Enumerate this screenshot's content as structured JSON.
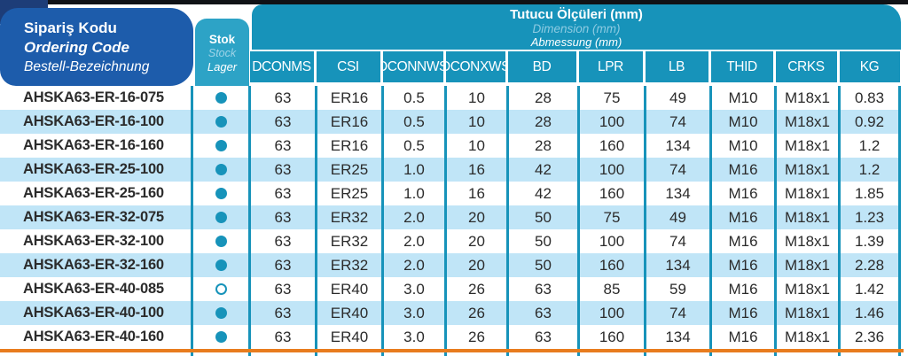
{
  "colors": {
    "teal": "#1793ba",
    "teal_panel": "#2da3c6",
    "royal_blue": "#1d5cab",
    "navy_tab": "#1d3d78",
    "top_strip": "#101216",
    "row_stripe": "#c0e5f7",
    "orange_rule": "#e87c1e",
    "text_dark": "#2b2b2b"
  },
  "ordering_code_header": {
    "tr": "Sipariş Kodu",
    "en": "Ordering Code",
    "de": "Bestell-Bezeichnung"
  },
  "stock_header": {
    "tr": "Stok",
    "en": "Stock",
    "de": "Lager"
  },
  "dimensions_header": {
    "tr": "Tutucu Ölçüleri (mm)",
    "en": "Dimension (mm)",
    "de": "Abmessung (mm)"
  },
  "columns": [
    "DCONMS",
    "CSI",
    "DCONNWS",
    "DCONXWS",
    "BD",
    "LPR",
    "LB",
    "THID",
    "CRKS",
    "KG"
  ],
  "rows": [
    {
      "code": "AHSKA63-ER-16-075",
      "stock": "filled",
      "values": [
        "63",
        "ER16",
        "0.5",
        "10",
        "28",
        "75",
        "49",
        "M10",
        "M18x1",
        "0.83"
      ]
    },
    {
      "code": "AHSKA63-ER-16-100",
      "stock": "filled",
      "values": [
        "63",
        "ER16",
        "0.5",
        "10",
        "28",
        "100",
        "74",
        "M10",
        "M18x1",
        "0.92"
      ]
    },
    {
      "code": "AHSKA63-ER-16-160",
      "stock": "filled",
      "values": [
        "63",
        "ER16",
        "0.5",
        "10",
        "28",
        "160",
        "134",
        "M10",
        "M18x1",
        "1.2"
      ]
    },
    {
      "code": "AHSKA63-ER-25-100",
      "stock": "filled",
      "values": [
        "63",
        "ER25",
        "1.0",
        "16",
        "42",
        "100",
        "74",
        "M16",
        "M18x1",
        "1.2"
      ]
    },
    {
      "code": "AHSKA63-ER-25-160",
      "stock": "filled",
      "values": [
        "63",
        "ER25",
        "1.0",
        "16",
        "42",
        "160",
        "134",
        "M16",
        "M18x1",
        "1.85"
      ]
    },
    {
      "code": "AHSKA63-ER-32-075",
      "stock": "filled",
      "values": [
        "63",
        "ER32",
        "2.0",
        "20",
        "50",
        "75",
        "49",
        "M16",
        "M18x1",
        "1.23"
      ]
    },
    {
      "code": "AHSKA63-ER-32-100",
      "stock": "filled",
      "values": [
        "63",
        "ER32",
        "2.0",
        "20",
        "50",
        "100",
        "74",
        "M16",
        "M18x1",
        "1.39"
      ]
    },
    {
      "code": "AHSKA63-ER-32-160",
      "stock": "filled",
      "values": [
        "63",
        "ER32",
        "2.0",
        "20",
        "50",
        "160",
        "134",
        "M16",
        "M18x1",
        "2.28"
      ]
    },
    {
      "code": "AHSKA63-ER-40-085",
      "stock": "empty",
      "values": [
        "63",
        "ER40",
        "3.0",
        "26",
        "63",
        "85",
        "59",
        "M16",
        "M18x1",
        "1.42"
      ]
    },
    {
      "code": "AHSKA63-ER-40-100",
      "stock": "filled",
      "values": [
        "63",
        "ER40",
        "3.0",
        "26",
        "63",
        "100",
        "74",
        "M16",
        "M18x1",
        "1.46"
      ]
    },
    {
      "code": "AHSKA63-ER-40-160",
      "stock": "filled",
      "values": [
        "63",
        "ER40",
        "3.0",
        "26",
        "63",
        "160",
        "134",
        "M16",
        "M18x1",
        "2.36"
      ]
    }
  ]
}
